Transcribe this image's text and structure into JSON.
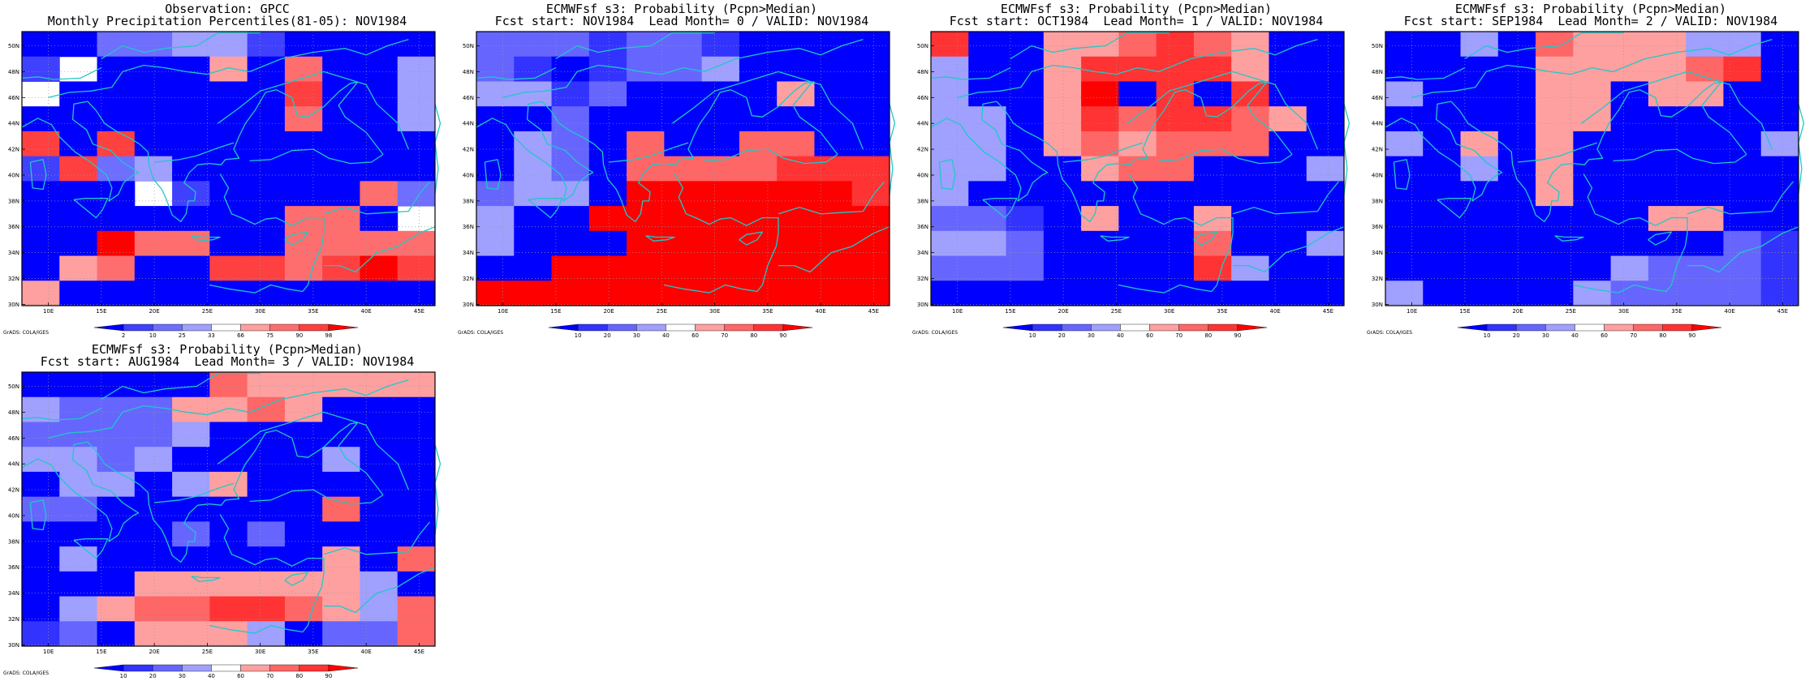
{
  "figure": {
    "lon_ticks": [
      "10E",
      "15E",
      "20E",
      "25E",
      "30E",
      "35E",
      "40E",
      "45E"
    ],
    "lat_ticks": [
      "30N",
      "32N",
      "34N",
      "36N",
      "38N",
      "40N",
      "42N",
      "44N",
      "46N",
      "48N",
      "50N"
    ],
    "credit": "GrADS: COLA/IGES",
    "grid": true,
    "coastline_color": "#20c8c8"
  },
  "colors": {
    "obs": [
      "#0000ff",
      "#4040ff",
      "#6e6eff",
      "#a0a0ff",
      "#ffffff",
      "#ffa0a0",
      "#ff6e6e",
      "#ff4040",
      "#ff0000"
    ],
    "fcst": [
      "#0000ff",
      "#3333ff",
      "#6666ff",
      "#a0a0ff",
      "#ffffff",
      "#ffa0a0",
      "#ff6666",
      "#ff3333",
      "#ff0000"
    ]
  },
  "panels": [
    {
      "id": "obs",
      "title1": "Observation: GPCC",
      "title2": "Monthly Precipitation Percentiles(81-05): NOV1984",
      "legend": [
        "2",
        "10",
        "25",
        "33",
        "66",
        "75",
        "90",
        "98"
      ],
      "palette": "obs",
      "grid": [
        "00223310000",
        "14000506003",
        "40000007003",
        "00000006003",
        "70700000000",
        "17230000000",
        "00041000062",
        "00000006604",
        "00866006666",
        "05600776787",
        "50000000000"
      ]
    },
    {
      "id": "lead0",
      "title1": "ECMWFsf s3: Probability (Pcpn>Median)",
      "title2": "Fcst start: NOV1984  Lead Month= 0 / VALID: NOV1984",
      "legend": [
        "10",
        "20",
        "30",
        "40",
        "60",
        "70",
        "80",
        "90"
      ],
      "palette": "fcst",
      "grid": [
        "22212210000",
        "21012230000",
        "33120000500",
        "00200000000",
        "03206006600",
        "03206666777",
        "23308888887",
        "30088888888",
        "30008888888",
        "00888888888",
        "88888888888"
      ]
    },
    {
      "id": "lead1",
      "title1": "ECMWFsf s3: Probability (Pcpn>Median)",
      "title2": "Fcst start: OCT1984  Lead Month= 1 / VALID: NOV1984",
      "legend": [
        "10",
        "20",
        "30",
        "40",
        "60",
        "70",
        "80",
        "90"
      ],
      "palette": "fcst",
      "grid": [
        "70055676500",
        "30057777500",
        "30058070700",
        "33057677650",
        "33056566600",
        "33005660003",
        "30000000000",
        "22105005000",
        "33200006003",
        "22200007300",
        "00000000000"
      ]
    },
    {
      "id": "lead2",
      "title1": "ECMWFsf s3: Probability (Pcpn>Median)",
      "title2": "Fcst start: SEP1984  Lead Month= 2 / VALID: NOV1984",
      "legend": [
        "10",
        "20",
        "30",
        "40",
        "60",
        "70",
        "80",
        "90"
      ],
      "palette": "fcst",
      "grid": [
        "00306555330",
        "00005555670",
        "30005505500",
        "00005500000",
        "30505000003",
        "00305000000",
        "00005000000",
        "00000005500",
        "00000000021",
        "00000032221",
        "30000322221"
      ]
    },
    {
      "id": "lead3",
      "title1": "ECMWFsf s3: Probability (Pcpn>Median)",
      "title2": "Fcst start: AUG1984  Lead Month= 3 / VALID: NOV1984",
      "legend": [
        "10",
        "20",
        "30",
        "40",
        "60",
        "70",
        "80",
        "90"
      ],
      "palette": "fcst",
      "grid": [
        "00000655555",
        "32225565000",
        "22223000000",
        "33230000300",
        "03303500000",
        "22000000600",
        "00002020000",
        "03000000506",
        "00055555530",
        "03566776536",
        "12055530226"
      ]
    }
  ]
}
